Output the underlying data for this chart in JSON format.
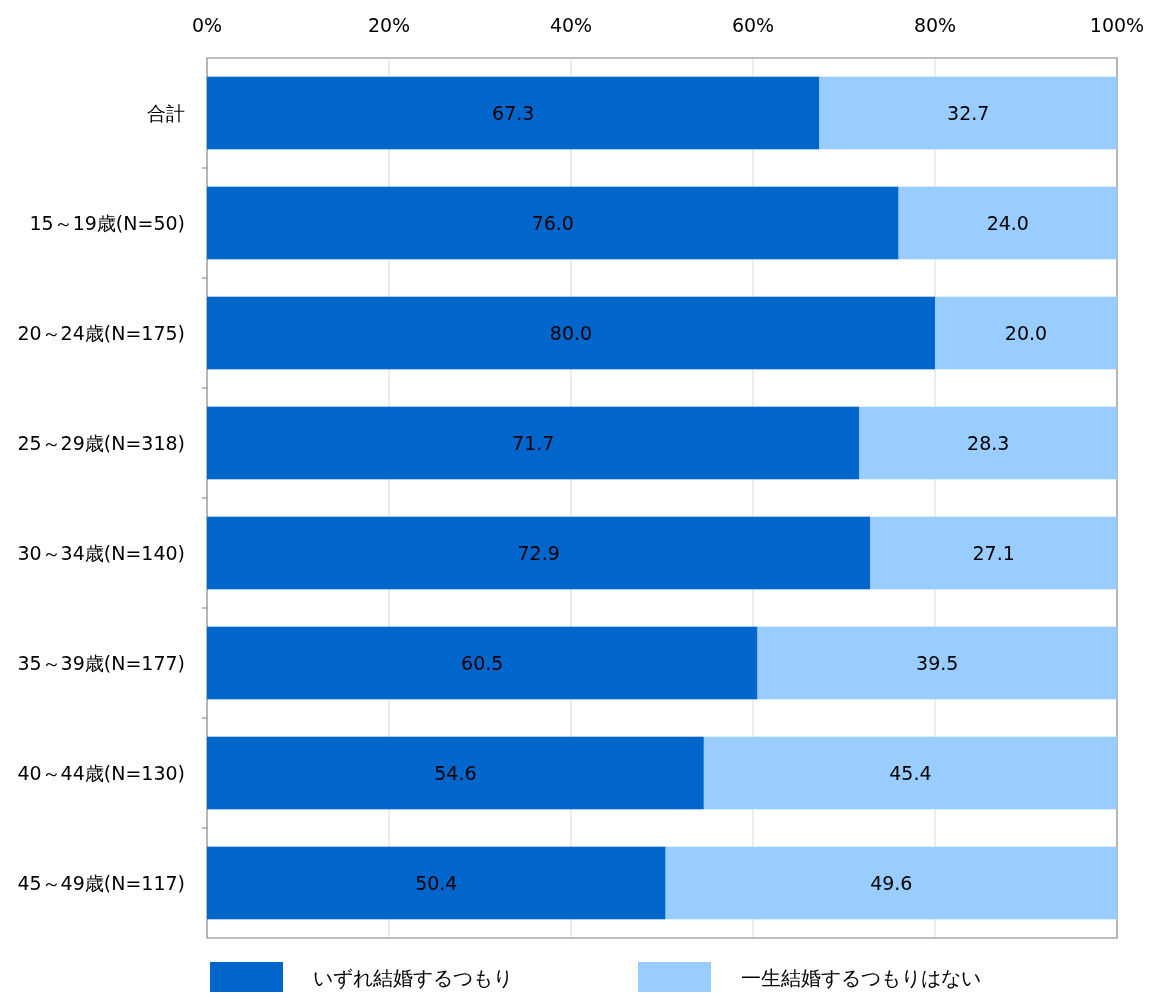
{
  "chart_data": {
    "type": "bar",
    "orientation": "horizontal",
    "stacked": true,
    "categories": [
      "合計",
      "15～19歳(N=50)",
      "20～24歳(N=175)",
      "25～29歳(N=318)",
      "30～34歳(N=140)",
      "35～39歳(N=177)",
      "40～44歳(N=130)",
      "45～49歳(N=117)"
    ],
    "series": [
      {
        "name": "いずれ結婚するつもり",
        "color": "#0066cc",
        "values": [
          67.3,
          76.0,
          80.0,
          71.7,
          72.9,
          60.5,
          54.6,
          50.4
        ],
        "value_labels": [
          "67.3",
          "76.0",
          "80.0",
          "71.7",
          "72.9",
          "60.5",
          "54.6",
          "50.4"
        ]
      },
      {
        "name": "一生結婚するつもりはない",
        "color": "#99ccff",
        "values": [
          32.7,
          24.0,
          20.0,
          28.3,
          27.1,
          39.5,
          45.4,
          49.6
        ],
        "value_labels": [
          "32.7",
          "24.0",
          "20.0",
          "28.3",
          "27.1",
          "39.5",
          "45.4",
          "49.6"
        ]
      }
    ],
    "xlim": [
      0,
      100
    ],
    "xticks": [
      {
        "value": 0,
        "label": "0%"
      },
      {
        "value": 20,
        "label": "20%"
      },
      {
        "value": 40,
        "label": "40%"
      },
      {
        "value": 60,
        "label": "60%"
      },
      {
        "value": 80,
        "label": "80%"
      },
      {
        "value": 100,
        "label": "100%"
      }
    ],
    "grid": "x",
    "legend": "bottom"
  }
}
